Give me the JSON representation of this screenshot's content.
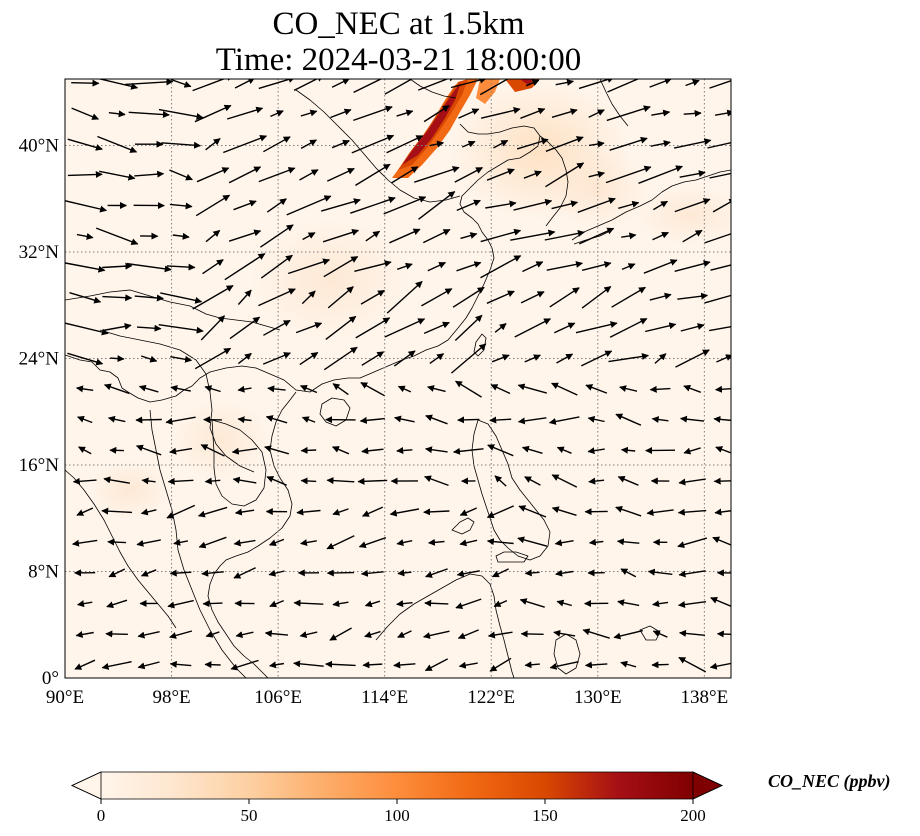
{
  "title": {
    "line1": "CO_NEC at 1.5km",
    "line2": "Time: 2024-03-21 18:00:00"
  },
  "map": {
    "lon_range": [
      90,
      140
    ],
    "lat_range": [
      0,
      45
    ],
    "lon_ticks": [
      {
        "value": 90,
        "label": "90°E"
      },
      {
        "value": 98,
        "label": "98°E"
      },
      {
        "value": 106,
        "label": "106°E"
      },
      {
        "value": 114,
        "label": "114°E"
      },
      {
        "value": 122,
        "label": "122°E"
      },
      {
        "value": 130,
        "label": "130°E"
      },
      {
        "value": 138,
        "label": "138°E"
      }
    ],
    "lat_ticks": [
      {
        "value": 0,
        "label": "0°"
      },
      {
        "value": 8,
        "label": "8°N"
      },
      {
        "value": 16,
        "label": "16°N"
      },
      {
        "value": 24,
        "label": "24°N"
      },
      {
        "value": 32,
        "label": "32°N"
      },
      {
        "value": 40,
        "label": "40°N"
      }
    ],
    "gridlines": "dotted",
    "colors": {
      "background": "#fff5eb",
      "coast": "#000000",
      "grid": "#7f7f7f",
      "plume": [
        "#fdd0a2",
        "#f16913",
        "#d94801",
        "#a50f15",
        "#7f0000"
      ]
    }
  },
  "colorbar": {
    "title": "CO_NEC (ppbv)",
    "ticks": [
      {
        "value": 0,
        "label": "0"
      },
      {
        "value": 50,
        "label": "50"
      },
      {
        "value": 100,
        "label": "100"
      },
      {
        "value": 150,
        "label": "150"
      },
      {
        "value": 200,
        "label": "200"
      }
    ],
    "range": [
      0,
      200
    ],
    "extend": "both",
    "colormap": "OrRd",
    "colormap_stops": [
      "#fff5eb",
      "#fee6ce",
      "#fdd0a2",
      "#fdae6b",
      "#fd8d3c",
      "#f16913",
      "#d94801",
      "#a50f15",
      "#7f0000"
    ]
  }
}
